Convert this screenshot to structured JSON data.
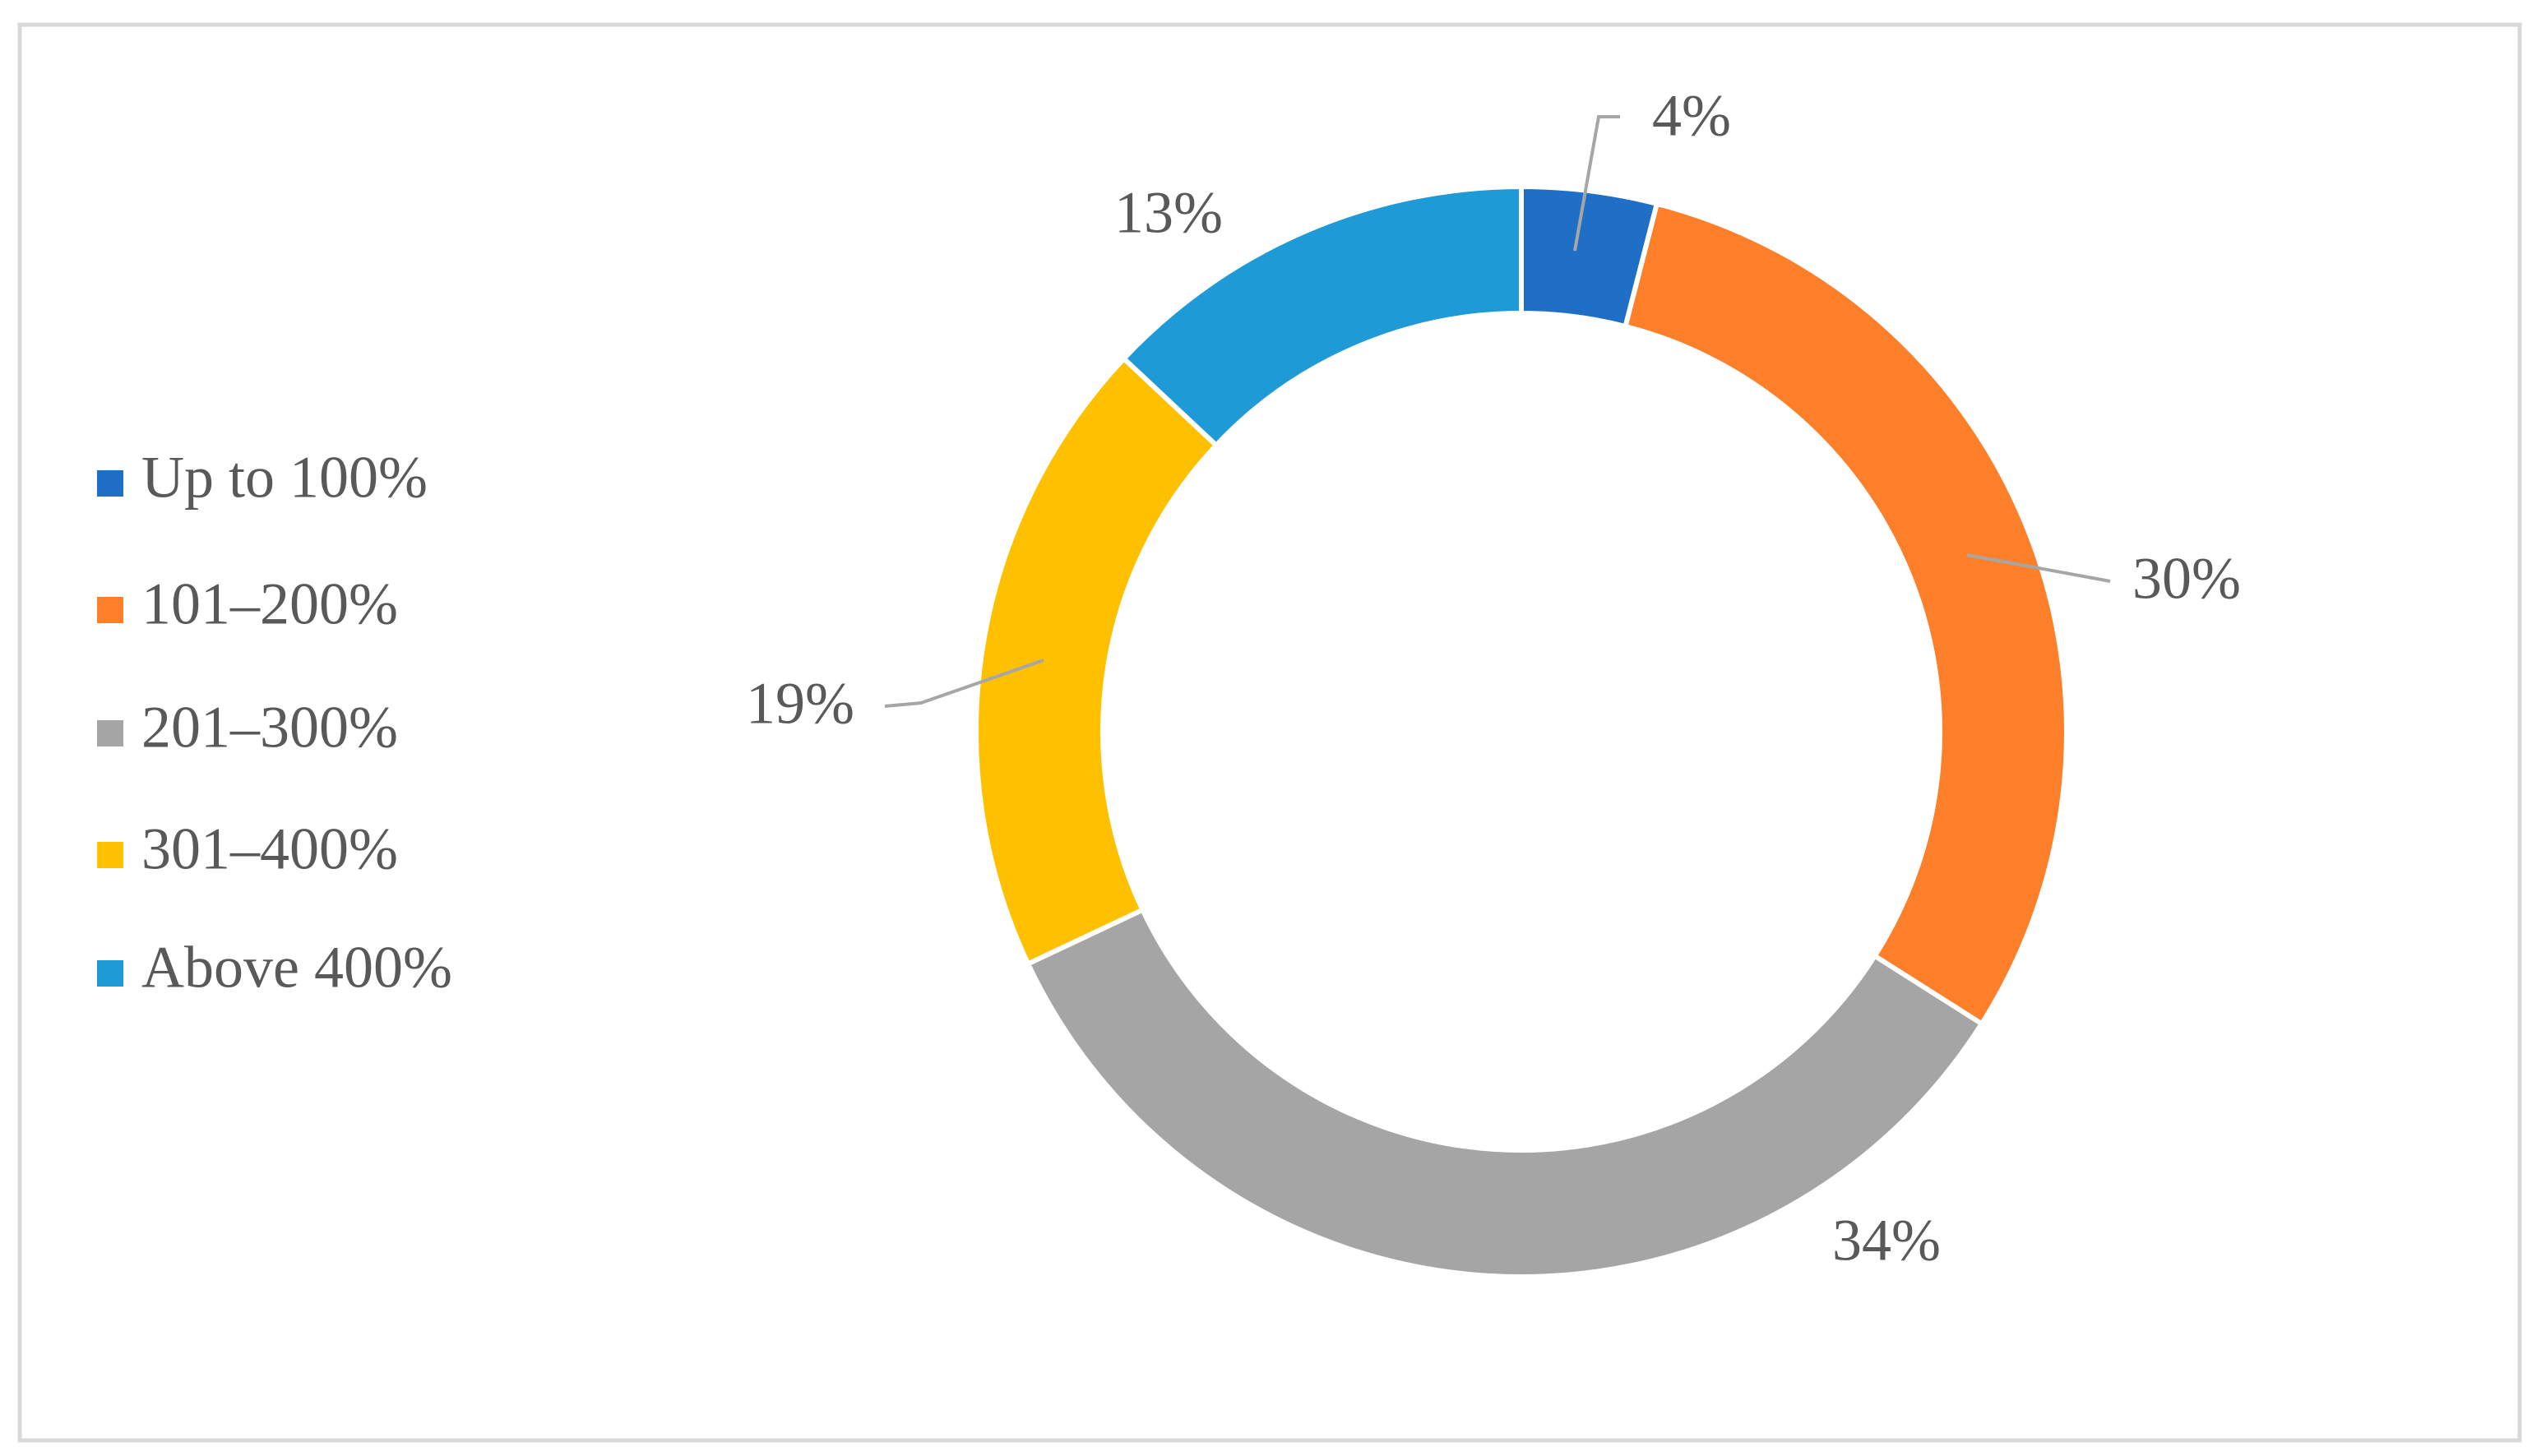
{
  "chart_data": {
    "type": "donut",
    "categories": [
      "Up to 100%",
      "101–200%",
      "201–300%",
      "301–400%",
      "Above 400%"
    ],
    "values": [
      4,
      30,
      34,
      19,
      13
    ],
    "value_labels": [
      "4%",
      "30%",
      "34%",
      "19%",
      "13%"
    ],
    "colors": [
      "#1f6fc6",
      "#fd7f2a",
      "#a5a5a5",
      "#ffc000",
      "#1e9bd7"
    ],
    "legend": "left"
  }
}
